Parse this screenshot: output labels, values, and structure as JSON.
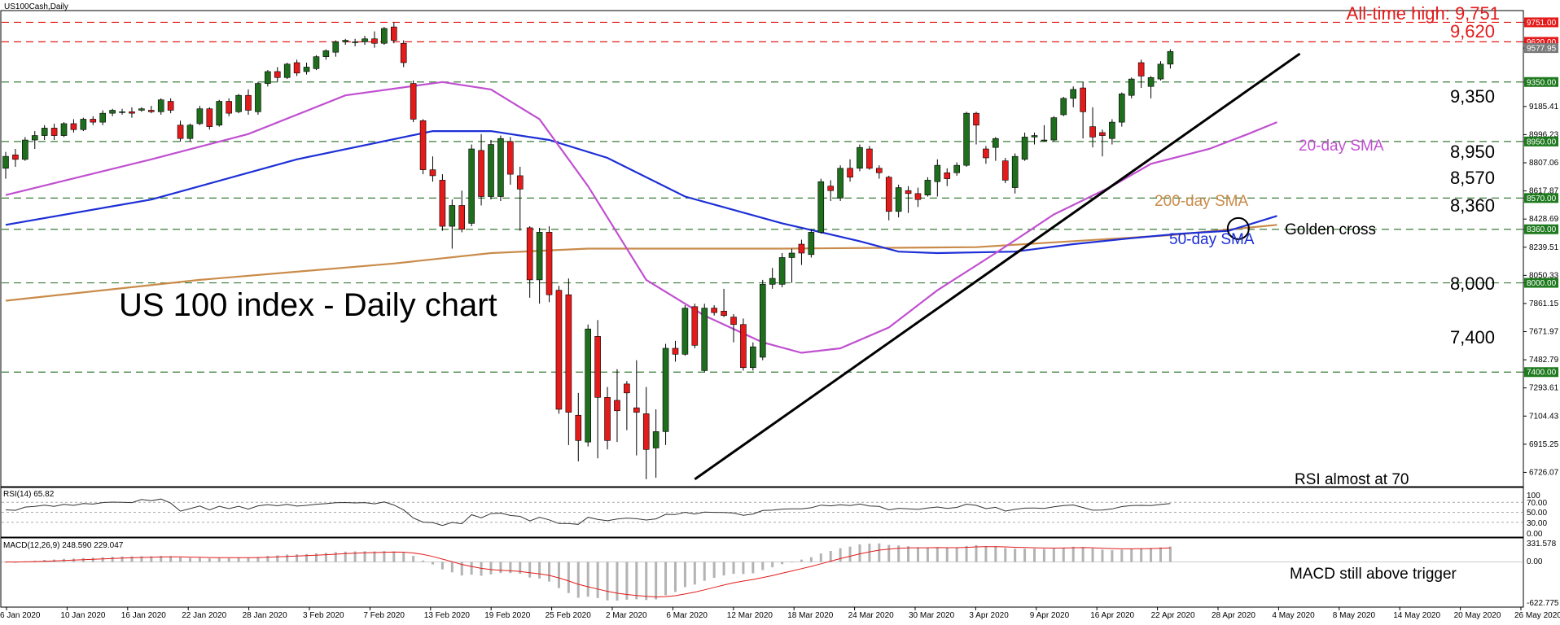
{
  "symbol_label": "US100Cash,Daily",
  "chart_title": "US 100 index - Daily chart",
  "colors": {
    "bull": "#1e6e1e",
    "bear": "#e31b1b",
    "sma20": "#c050d0",
    "sma50": "#1d2fd6",
    "sma200": "#c98b4a",
    "trendline": "#000000",
    "support_line": "#3a7d3a",
    "resistance_line": "#e31b1b",
    "green_tag": "#1f7a1f",
    "red_tag": "#e31b1b",
    "current_price_tag": "#7b7b7b",
    "rsi_line": "#333333",
    "macd_bars": "#b3b3b3",
    "macd_signal": "#e31b1b"
  },
  "price_axis_ticks": [
    "9751.00",
    "9620.00",
    "9577.95",
    "9350.00",
    "9185.41",
    "8996.23",
    "8950.00",
    "8807.06",
    "8617.87",
    "8570.00",
    "8428.69",
    "8360.00",
    "8239.51",
    "8050.33",
    "8000.00",
    "7861.15",
    "7671.97",
    "7482.79",
    "7400.00",
    "7293.61",
    "7104.43",
    "6915.25",
    "6726.07"
  ],
  "x_axis_ticks": [
    "6 Jan 2020",
    "10 Jan 2020",
    "16 Jan 2020",
    "22 Jan 2020",
    "28 Jan 2020",
    "3 Feb 2020",
    "7 Feb 2020",
    "13 Feb 2020",
    "19 Feb 2020",
    "25 Feb 2020",
    "2 Mar 2020",
    "6 Mar 2020",
    "12 Mar 2020",
    "18 Mar 2020",
    "24 Mar 2020",
    "30 Mar 2020",
    "3 Apr 2020",
    "9 Apr 2020",
    "16 Apr 2020",
    "22 Apr 2020",
    "28 Apr 2020",
    "4 May 2020",
    "8 May 2020",
    "14 May 2020",
    "20 May 2020",
    "26 May 2020"
  ],
  "levels": {
    "ath_label": "All-time high: 9,751",
    "labels": [
      "9,620",
      "9,350",
      "8,950",
      "8,570",
      "8,360",
      "8,000",
      "7,400"
    ]
  },
  "annotations": {
    "sma20": "20-day SMA",
    "sma200": "200-day SMA",
    "sma50": "50-day SMA",
    "golden_cross": "Golden cross",
    "rsi": "RSI almost at 70",
    "macd": "MACD still above trigger"
  },
  "rsi": {
    "label": "RSI(14) 65.82",
    "ticks": [
      "100",
      "70.00",
      "50.00",
      "30.00",
      "0.00"
    ],
    "ylim": [
      0,
      100
    ]
  },
  "macd": {
    "label": "MACD(12,26,9) 248.590 229.047",
    "ticks": [
      "331.578",
      "0.00",
      "-622.775"
    ],
    "ylim": [
      -622.775,
      331.578
    ]
  },
  "chart_data": {
    "type": "candlestick",
    "title": "US 100 index - Daily chart",
    "ylim": [
      6630,
      9830
    ],
    "horizontal_levels": [
      9751,
      9620,
      9350,
      8950,
      8570,
      8360,
      8000,
      7400
    ],
    "candles": [
      {
        "o": 8770,
        "h": 8880,
        "l": 8700,
        "c": 8850
      },
      {
        "o": 8860,
        "h": 8900,
        "l": 8780,
        "c": 8830
      },
      {
        "o": 8830,
        "h": 8980,
        "l": 8820,
        "c": 8960
      },
      {
        "o": 8960,
        "h": 9020,
        "l": 8900,
        "c": 8990
      },
      {
        "o": 8990,
        "h": 9060,
        "l": 8960,
        "c": 9040
      },
      {
        "o": 9040,
        "h": 9070,
        "l": 8960,
        "c": 8990
      },
      {
        "o": 8990,
        "h": 9080,
        "l": 8980,
        "c": 9070
      },
      {
        "o": 9070,
        "h": 9100,
        "l": 9010,
        "c": 9030
      },
      {
        "o": 9030,
        "h": 9110,
        "l": 9020,
        "c": 9100
      },
      {
        "o": 9100,
        "h": 9120,
        "l": 9060,
        "c": 9080
      },
      {
        "o": 9080,
        "h": 9160,
        "l": 9060,
        "c": 9140
      },
      {
        "o": 9140,
        "h": 9170,
        "l": 9120,
        "c": 9160
      },
      {
        "o": 9150,
        "h": 9170,
        "l": 9130,
        "c": 9150
      },
      {
        "o": 9150,
        "h": 9180,
        "l": 9110,
        "c": 9140
      },
      {
        "o": 9160,
        "h": 9180,
        "l": 9150,
        "c": 9170
      },
      {
        "o": 9160,
        "h": 9190,
        "l": 9140,
        "c": 9150
      },
      {
        "o": 9150,
        "h": 9240,
        "l": 9130,
        "c": 9230
      },
      {
        "o": 9220,
        "h": 9240,
        "l": 9140,
        "c": 9160
      },
      {
        "o": 9060,
        "h": 9090,
        "l": 8950,
        "c": 8970
      },
      {
        "o": 8970,
        "h": 9070,
        "l": 8950,
        "c": 9060
      },
      {
        "o": 9070,
        "h": 9190,
        "l": 9060,
        "c": 9170
      },
      {
        "o": 9170,
        "h": 9180,
        "l": 9030,
        "c": 9050
      },
      {
        "o": 9060,
        "h": 9230,
        "l": 9050,
        "c": 9220
      },
      {
        "o": 9220,
        "h": 9240,
        "l": 9120,
        "c": 9140
      },
      {
        "o": 9150,
        "h": 9270,
        "l": 9140,
        "c": 9260
      },
      {
        "o": 9260,
        "h": 9300,
        "l": 9130,
        "c": 9160
      },
      {
        "o": 9150,
        "h": 9350,
        "l": 9130,
        "c": 9340
      },
      {
        "o": 9340,
        "h": 9430,
        "l": 9320,
        "c": 9420
      },
      {
        "o": 9420,
        "h": 9450,
        "l": 9350,
        "c": 9380
      },
      {
        "o": 9380,
        "h": 9480,
        "l": 9370,
        "c": 9470
      },
      {
        "o": 9480,
        "h": 9500,
        "l": 9390,
        "c": 9410
      },
      {
        "o": 9420,
        "h": 9480,
        "l": 9400,
        "c": 9450
      },
      {
        "o": 9440,
        "h": 9530,
        "l": 9430,
        "c": 9520
      },
      {
        "o": 9520,
        "h": 9570,
        "l": 9500,
        "c": 9560
      },
      {
        "o": 9550,
        "h": 9630,
        "l": 9520,
        "c": 9620
      },
      {
        "o": 9620,
        "h": 9640,
        "l": 9600,
        "c": 9630
      },
      {
        "o": 9620,
        "h": 9640,
        "l": 9590,
        "c": 9620
      },
      {
        "o": 9620,
        "h": 9660,
        "l": 9600,
        "c": 9640
      },
      {
        "o": 9640,
        "h": 9690,
        "l": 9580,
        "c": 9610
      },
      {
        "o": 9610,
        "h": 9720,
        "l": 9600,
        "c": 9710
      },
      {
        "o": 9720,
        "h": 9751,
        "l": 9610,
        "c": 9630
      },
      {
        "o": 9610,
        "h": 9630,
        "l": 9450,
        "c": 9480
      },
      {
        "o": 9340,
        "h": 9360,
        "l": 9080,
        "c": 9100
      },
      {
        "o": 9090,
        "h": 9100,
        "l": 8730,
        "c": 8760
      },
      {
        "o": 8760,
        "h": 8850,
        "l": 8680,
        "c": 8720
      },
      {
        "o": 8690,
        "h": 8730,
        "l": 8350,
        "c": 8380
      },
      {
        "o": 8380,
        "h": 8560,
        "l": 8230,
        "c": 8520
      },
      {
        "o": 8520,
        "h": 8620,
        "l": 8340,
        "c": 8360
      },
      {
        "o": 8400,
        "h": 8930,
        "l": 8380,
        "c": 8900
      },
      {
        "o": 8890,
        "h": 9000,
        "l": 8520,
        "c": 8580
      },
      {
        "o": 8580,
        "h": 8960,
        "l": 8560,
        "c": 8930
      },
      {
        "o": 8580,
        "h": 8990,
        "l": 8550,
        "c": 8970
      },
      {
        "o": 8950,
        "h": 8980,
        "l": 8660,
        "c": 8730
      },
      {
        "o": 8720,
        "h": 8780,
        "l": 8350,
        "c": 8630
      },
      {
        "o": 8370,
        "h": 8380,
        "l": 7900,
        "c": 8020
      },
      {
        "o": 8020,
        "h": 8370,
        "l": 7860,
        "c": 8340
      },
      {
        "o": 8340,
        "h": 8380,
        "l": 7870,
        "c": 7920
      },
      {
        "o": 7950,
        "h": 7980,
        "l": 7120,
        "c": 7150
      },
      {
        "o": 7920,
        "h": 8030,
        "l": 6910,
        "c": 7130
      },
      {
        "o": 7110,
        "h": 7260,
        "l": 6800,
        "c": 6940
      },
      {
        "o": 6930,
        "h": 7720,
        "l": 6900,
        "c": 7690
      },
      {
        "o": 7640,
        "h": 7750,
        "l": 6820,
        "c": 7230
      },
      {
        "o": 7230,
        "h": 7300,
        "l": 6880,
        "c": 6940
      },
      {
        "o": 7210,
        "h": 7420,
        "l": 6930,
        "c": 7140
      },
      {
        "o": 7320,
        "h": 7340,
        "l": 7010,
        "c": 7260
      },
      {
        "o": 7160,
        "h": 7480,
        "l": 6840,
        "c": 7130
      },
      {
        "o": 7120,
        "h": 7300,
        "l": 6680,
        "c": 6880
      },
      {
        "o": 6890,
        "h": 7150,
        "l": 6690,
        "c": 7000
      },
      {
        "o": 7000,
        "h": 7590,
        "l": 6910,
        "c": 7560
      },
      {
        "o": 7560,
        "h": 7610,
        "l": 7470,
        "c": 7520
      },
      {
        "o": 7520,
        "h": 7850,
        "l": 7510,
        "c": 7830
      },
      {
        "o": 7840,
        "h": 7860,
        "l": 7560,
        "c": 7580
      },
      {
        "o": 7410,
        "h": 7860,
        "l": 7400,
        "c": 7830
      },
      {
        "o": 7830,
        "h": 7850,
        "l": 7780,
        "c": 7800
      },
      {
        "o": 7810,
        "h": 7960,
        "l": 7770,
        "c": 7780
      },
      {
        "o": 7770,
        "h": 7790,
        "l": 7600,
        "c": 7720
      },
      {
        "o": 7720,
        "h": 7760,
        "l": 7410,
        "c": 7430
      },
      {
        "o": 7430,
        "h": 7600,
        "l": 7410,
        "c": 7570
      },
      {
        "o": 7500,
        "h": 8020,
        "l": 7480,
        "c": 7990
      },
      {
        "o": 7990,
        "h": 8100,
        "l": 7960,
        "c": 8030
      },
      {
        "o": 7990,
        "h": 8200,
        "l": 7970,
        "c": 8170
      },
      {
        "o": 8170,
        "h": 8230,
        "l": 8000,
        "c": 8200
      },
      {
        "o": 8260,
        "h": 8290,
        "l": 8120,
        "c": 8200
      },
      {
        "o": 8190,
        "h": 8360,
        "l": 8170,
        "c": 8340
      },
      {
        "o": 8340,
        "h": 8700,
        "l": 8330,
        "c": 8680
      },
      {
        "o": 8650,
        "h": 8690,
        "l": 8550,
        "c": 8620
      },
      {
        "o": 8570,
        "h": 8790,
        "l": 8550,
        "c": 8770
      },
      {
        "o": 8770,
        "h": 8830,
        "l": 8680,
        "c": 8710
      },
      {
        "o": 8770,
        "h": 8930,
        "l": 8750,
        "c": 8910
      },
      {
        "o": 8900,
        "h": 8920,
        "l": 8760,
        "c": 8770
      },
      {
        "o": 8770,
        "h": 8790,
        "l": 8700,
        "c": 8740
      },
      {
        "o": 8710,
        "h": 8720,
        "l": 8420,
        "c": 8480
      },
      {
        "o": 8480,
        "h": 8660,
        "l": 8440,
        "c": 8640
      },
      {
        "o": 8620,
        "h": 8650,
        "l": 8470,
        "c": 8600
      },
      {
        "o": 8600,
        "h": 8640,
        "l": 8510,
        "c": 8560
      },
      {
        "o": 8590,
        "h": 8710,
        "l": 8580,
        "c": 8690
      },
      {
        "o": 8680,
        "h": 8830,
        "l": 8580,
        "c": 8790
      },
      {
        "o": 8740,
        "h": 8770,
        "l": 8650,
        "c": 8700
      },
      {
        "o": 8740,
        "h": 8810,
        "l": 8720,
        "c": 8790
      },
      {
        "o": 8790,
        "h": 9150,
        "l": 8780,
        "c": 9140
      },
      {
        "o": 9140,
        "h": 9150,
        "l": 8930,
        "c": 9060
      },
      {
        "o": 8900,
        "h": 8920,
        "l": 8800,
        "c": 8840
      },
      {
        "o": 8910,
        "h": 8980,
        "l": 8820,
        "c": 8970
      },
      {
        "o": 8820,
        "h": 8840,
        "l": 8670,
        "c": 8690
      },
      {
        "o": 8640,
        "h": 8870,
        "l": 8600,
        "c": 8850
      },
      {
        "o": 8830,
        "h": 9010,
        "l": 8820,
        "c": 8980
      },
      {
        "o": 8980,
        "h": 9010,
        "l": 8930,
        "c": 8990
      },
      {
        "o": 8960,
        "h": 9060,
        "l": 8950,
        "c": 8960
      },
      {
        "o": 8960,
        "h": 9120,
        "l": 8950,
        "c": 9110
      },
      {
        "o": 9130,
        "h": 9250,
        "l": 9120,
        "c": 9240
      },
      {
        "o": 9240,
        "h": 9320,
        "l": 9180,
        "c": 9300
      },
      {
        "o": 9310,
        "h": 9350,
        "l": 8970,
        "c": 9150
      },
      {
        "o": 9050,
        "h": 9180,
        "l": 8910,
        "c": 8980
      },
      {
        "o": 9010,
        "h": 9030,
        "l": 8850,
        "c": 8990
      },
      {
        "o": 8970,
        "h": 9100,
        "l": 8930,
        "c": 9080
      },
      {
        "o": 9080,
        "h": 9280,
        "l": 9050,
        "c": 9270
      },
      {
        "o": 9260,
        "h": 9380,
        "l": 9240,
        "c": 9370
      },
      {
        "o": 9480,
        "h": 9500,
        "l": 9310,
        "c": 9390
      },
      {
        "o": 9320,
        "h": 9390,
        "l": 9240,
        "c": 9380
      },
      {
        "o": 9370,
        "h": 9490,
        "l": 9360,
        "c": 9470
      },
      {
        "o": 9470,
        "h": 9570,
        "l": 9440,
        "c": 9555
      }
    ],
    "sma20": [
      [
        0,
        8590
      ],
      [
        15,
        8830
      ],
      [
        25,
        9000
      ],
      [
        35,
        9260
      ],
      [
        45,
        9350
      ],
      [
        50,
        9300
      ],
      [
        55,
        9100
      ],
      [
        60,
        8650
      ],
      [
        66,
        8020
      ],
      [
        72,
        7780
      ],
      [
        78,
        7600
      ],
      [
        82,
        7530
      ],
      [
        86,
        7560
      ],
      [
        91,
        7700
      ],
      [
        96,
        7950
      ],
      [
        102,
        8200
      ],
      [
        108,
        8460
      ],
      [
        114,
        8650
      ],
      [
        118,
        8800
      ],
      [
        124,
        8900
      ],
      [
        128,
        9000
      ],
      [
        131,
        9080
      ]
    ],
    "sma50": [
      [
        0,
        8390
      ],
      [
        15,
        8560
      ],
      [
        30,
        8830
      ],
      [
        44,
        9020
      ],
      [
        50,
        9020
      ],
      [
        56,
        8960
      ],
      [
        62,
        8840
      ],
      [
        70,
        8580
      ],
      [
        80,
        8400
      ],
      [
        88,
        8280
      ],
      [
        92,
        8210
      ],
      [
        96,
        8200
      ],
      [
        104,
        8210
      ],
      [
        110,
        8260
      ],
      [
        116,
        8300
      ],
      [
        121,
        8330
      ],
      [
        126,
        8350
      ],
      [
        131,
        8450
      ]
    ],
    "sma200": [
      [
        0,
        7880
      ],
      [
        20,
        8020
      ],
      [
        40,
        8130
      ],
      [
        50,
        8200
      ],
      [
        60,
        8230
      ],
      [
        80,
        8230
      ],
      [
        100,
        8240
      ],
      [
        120,
        8320
      ],
      [
        131,
        8390
      ]
    ],
    "trendline": [
      [
        71,
        6680
      ],
      [
        131,
        9420
      ]
    ],
    "golden_cross_index": 127
  }
}
